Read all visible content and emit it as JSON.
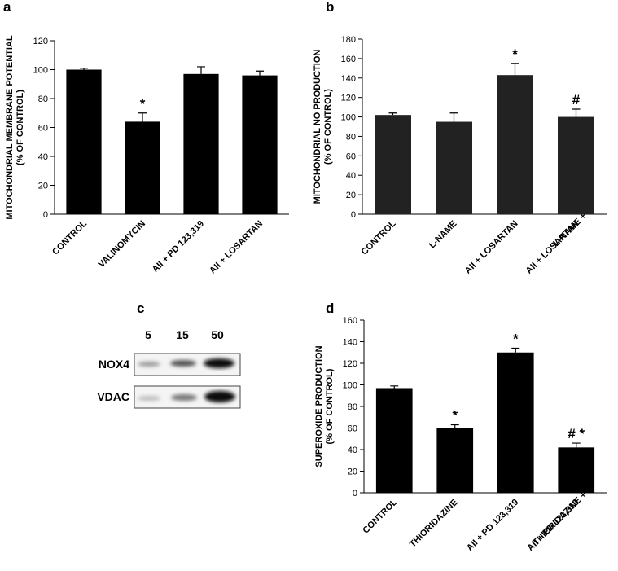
{
  "chart_data": [
    {
      "type": "bar",
      "panel_label": "a",
      "ylabel": [
        "MITOCHONDRIAL MEMBRANE POTENTIAL",
        "(% OF CONTROL)"
      ],
      "categories": [
        [
          "CONTROL"
        ],
        [
          "VALINOMYCIN"
        ],
        [
          "AII + PD 123,319"
        ],
        [
          "AII + LOSARTAN"
        ]
      ],
      "values": [
        100,
        64,
        97,
        96
      ],
      "errors": [
        1,
        6,
        5,
        3
      ],
      "annotations": [
        null,
        "*",
        null,
        null
      ],
      "color": "#000000",
      "ylim": [
        0,
        120
      ],
      "yticks": [
        0,
        20,
        40,
        60,
        80,
        100,
        120
      ]
    },
    {
      "type": "bar",
      "panel_label": "b",
      "ylabel": [
        "MITOCHONDRIAL NO PRODUCTION",
        "(% OF CONTROL)"
      ],
      "categories": [
        [
          "CONTROL"
        ],
        [
          "L-NAME"
        ],
        [
          "AII + LOSARTAN"
        ],
        [
          "L-NAME +",
          "AII + LOSARTAN"
        ]
      ],
      "values": [
        102,
        95,
        143,
        100
      ],
      "errors": [
        2,
        9,
        12,
        8
      ],
      "annotations": [
        null,
        null,
        "*",
        "#"
      ],
      "color": "#222222",
      "ylim": [
        0,
        180
      ],
      "yticks": [
        0,
        20,
        40,
        60,
        80,
        100,
        120,
        140,
        160,
        180
      ]
    },
    {
      "type": "bar",
      "panel_label": "d",
      "ylabel": [
        "SUPEROXIDE PRODUCTION",
        "(% OF CONTROL)"
      ],
      "categories": [
        [
          "CONTROL"
        ],
        [
          "THIORIDAZINE"
        ],
        [
          "AII + PD 123,319"
        ],
        [
          "THIORIDAZINE +",
          "AII + PD 123,319"
        ]
      ],
      "values": [
        97,
        60,
        130,
        42
      ],
      "errors": [
        2,
        3,
        4,
        4
      ],
      "annotations": [
        null,
        "*",
        "*",
        "# *"
      ],
      "color": "#000000",
      "ylim": [
        0,
        160
      ],
      "yticks": [
        0,
        20,
        40,
        60,
        80,
        100,
        120,
        140,
        160
      ]
    }
  ],
  "blot": {
    "panel_label": "c",
    "lanes": [
      "5",
      "15",
      "50"
    ],
    "rows": [
      "NOX4",
      "VDAC"
    ]
  }
}
